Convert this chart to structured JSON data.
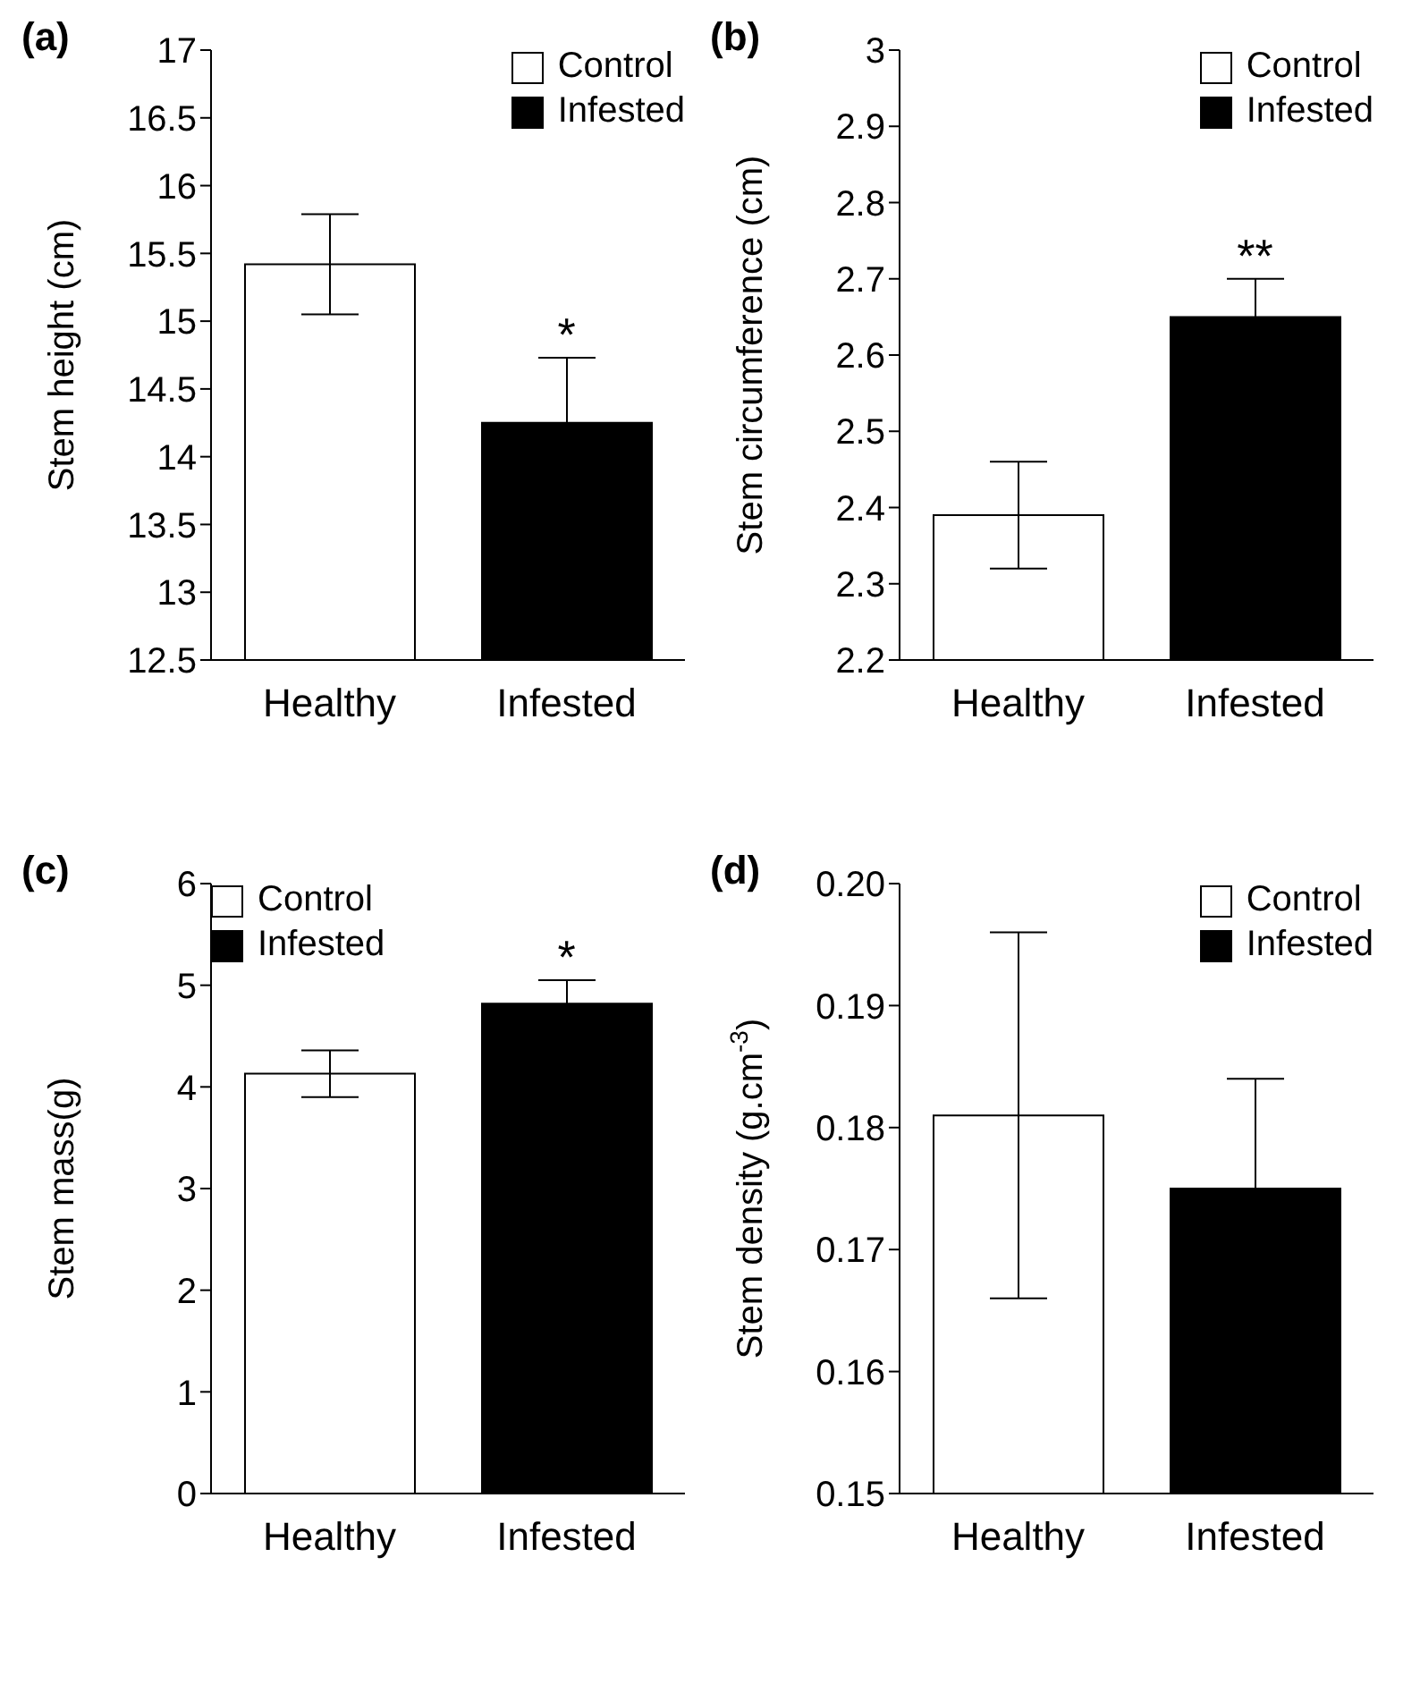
{
  "chart_data": [
    {
      "type": "bar",
      "title": "(a)",
      "ylabel": "Stem height (cm)",
      "categories": [
        "Healthy",
        "Infested"
      ],
      "stacked": true,
      "legend": "top right",
      "ylim": [
        12.5,
        17
      ],
      "yticks": [
        12.5,
        13,
        13.5,
        14,
        14.5,
        15,
        15.5,
        16,
        16.5,
        17
      ],
      "series": [
        {
          "name": "Control",
          "color": "#ffffff",
          "values": [
            15.42,
            null
          ],
          "errors": [
            0.37,
            null
          ]
        },
        {
          "name": "Infested",
          "color": "#000000",
          "values": [
            null,
            14.25
          ],
          "errors": [
            null,
            0.48
          ]
        }
      ],
      "annotations": [
        "*"
      ]
    },
    {
      "type": "bar",
      "title": "(b)",
      "ylabel": "Stem circumference (cm)",
      "categories": [
        "Healthy",
        "Infested"
      ],
      "stacked": true,
      "legend": "top right",
      "ylim": [
        2.2,
        3
      ],
      "yticks": [
        2.2,
        2.3,
        2.4,
        2.5,
        2.6,
        2.7,
        2.8,
        2.9,
        3
      ],
      "series": [
        {
          "name": "Control",
          "color": "#ffffff",
          "values": [
            2.39,
            null
          ],
          "errors": [
            0.07,
            null
          ]
        },
        {
          "name": "Infested",
          "color": "#000000",
          "values": [
            null,
            2.65
          ],
          "errors": [
            null,
            0.05
          ]
        }
      ],
      "annotations": [
        "**"
      ]
    },
    {
      "type": "bar",
      "title": "(c)",
      "ylabel": "Stem mass(g)",
      "categories": [
        "Healthy",
        "Infested"
      ],
      "stacked": true,
      "legend": "top left",
      "ylim": [
        0,
        6
      ],
      "yticks": [
        0,
        1,
        2,
        3,
        4,
        5,
        6
      ],
      "series": [
        {
          "name": "Control",
          "color": "#ffffff",
          "values": [
            4.13,
            null
          ],
          "errors": [
            0.23,
            null
          ]
        },
        {
          "name": "Infested",
          "color": "#000000",
          "values": [
            null,
            4.82
          ],
          "errors": [
            null,
            0.23
          ]
        }
      ],
      "annotations": [
        "*"
      ]
    },
    {
      "type": "bar",
      "title": "(d)",
      "ylabel": "Stem density (g.cm$^{-3}$)",
      "categories": [
        "Healthy",
        "Infested"
      ],
      "stacked": true,
      "legend": "top right",
      "ylim": [
        0.15,
        0.2
      ],
      "yticks": [
        0.15,
        0.16,
        0.17,
        0.18,
        0.19,
        {
          "value": 0.2,
          "label": "0.20"
        }
      ],
      "series": [
        {
          "name": "Control",
          "color": "#ffffff",
          "values": [
            0.181,
            null
          ],
          "errors": [
            0.015,
            null
          ]
        },
        {
          "name": "Infested",
          "color": "#000000",
          "values": [
            null,
            0.175
          ],
          "errors": [
            null,
            0.009
          ]
        }
      ]
    }
  ]
}
